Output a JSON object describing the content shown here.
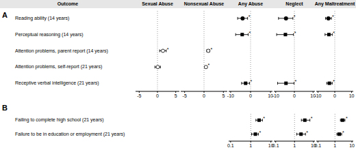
{
  "chart_data": {
    "type": "scatter",
    "row_header": "Outcome",
    "columns": [
      "Sexual Abuse",
      "Nonsexual Abuse",
      "Any Abuse",
      "Neglect",
      "Any Maltreatment"
    ],
    "panels": [
      {
        "label": "A",
        "log": false,
        "reference": 0,
        "axes": [
          {
            "xlim": [
              -6,
              6
            ],
            "xticks": [
              -5,
              0,
              5
            ]
          },
          {
            "xlim": [
              -6,
              6
            ],
            "xticks": [
              -5,
              0,
              5
            ]
          },
          {
            "xlim": [
              -11,
              11
            ],
            "xticks": [
              -10,
              0,
              10
            ]
          },
          {
            "xlim": [
              -11,
              11
            ],
            "xticks": [
              -10,
              0,
              10
            ]
          },
          {
            "xlim": [
              -11,
              11
            ],
            "xticks": [
              -10,
              0,
              10
            ]
          }
        ],
        "rows": [
          {
            "label": "Reading ability (14 years)",
            "marker": "circle",
            "values": [
              null,
              null,
              -4.0,
              -4.5,
              -3.8
            ],
            "ci_low": [
              null,
              null,
              -6.5,
              -8.5,
              -5.5
            ],
            "ci_high": [
              null,
              null,
              -1.5,
              -0.8,
              -2.0
            ],
            "value_labels": [
              null,
              null,
              "*",
              "*",
              "*"
            ]
          },
          {
            "label": "Perceptual reasoning (14 years)",
            "marker": "square",
            "values": [
              null,
              null,
              -4.2,
              -4.8,
              -3.5
            ],
            "ci_low": [
              null,
              null,
              -7.5,
              -9.5,
              -5.8
            ],
            "ci_high": [
              null,
              null,
              -1.2,
              -0.5,
              -1.5
            ],
            "value_labels": [
              null,
              null,
              "*",
              "*",
              "*"
            ]
          },
          {
            "label": "Attention problems, parent report (14 years)",
            "marker": "open_circle",
            "values": [
              1.5,
              1.1,
              null,
              null,
              null
            ],
            "ci_low": [
              0.6,
              0.7,
              null,
              null,
              null
            ],
            "ci_high": [
              2.4,
              1.5,
              null,
              null,
              null
            ],
            "value_labels": [
              "*",
              "*",
              null,
              null,
              null
            ]
          },
          {
            "label": "Attention problems, self-report (21 years)",
            "marker": "open_circle",
            "values": [
              0.1,
              0.5,
              null,
              null,
              null
            ],
            "ci_low": [
              -0.7,
              0.2,
              null,
              null,
              null
            ],
            "ci_high": [
              0.8,
              0.8,
              null,
              null,
              null
            ],
            "value_labels": [
              null,
              "*",
              null,
              null,
              null
            ]
          },
          {
            "label": "Receptive verbal intelligence (21 years)",
            "marker": "square",
            "values": [
              null,
              null,
              -2.5,
              -4.5,
              -3.2
            ],
            "ci_low": [
              null,
              null,
              -4.5,
              -9.0,
              -4.8
            ],
            "ci_high": [
              null,
              null,
              -0.5,
              -0.2,
              -1.5
            ],
            "value_labels": [
              null,
              null,
              "*",
              "*",
              "*"
            ]
          }
        ]
      },
      {
        "label": "B",
        "log": true,
        "reference": 1,
        "axes": [
          null,
          null,
          {
            "xlim": [
              0.08,
              12
            ],
            "xticks": [
              0.1,
              1,
              10
            ]
          },
          {
            "xlim": [
              0.08,
              12
            ],
            "xticks": [
              0.1,
              1,
              10
            ]
          },
          {
            "xlim": [
              0.08,
              12
            ],
            "xticks": [
              0.1,
              1,
              10
            ]
          }
        ],
        "rows": [
          {
            "label": "Failing to complete high school (21 years)",
            "marker": "square",
            "values": [
              null,
              null,
              2.6,
              3.5,
              2.8
            ],
            "ci_low": [
              null,
              null,
              1.8,
              2.3,
              2.1
            ],
            "ci_high": [
              null,
              null,
              3.8,
              6.5,
              3.9
            ],
            "value_labels": [
              null,
              null,
              "*",
              "*",
              "*"
            ]
          },
          {
            "label": "Failure to be in education or employment (21 years)",
            "marker": "square",
            "values": [
              null,
              null,
              1.7,
              2.2,
              1.8
            ],
            "ci_low": [
              null,
              null,
              1.1,
              1.3,
              1.3
            ],
            "ci_high": [
              null,
              null,
              2.4,
              3.8,
              2.5
            ],
            "value_labels": [
              null,
              null,
              "*",
              "*",
              "*"
            ]
          }
        ]
      }
    ]
  }
}
